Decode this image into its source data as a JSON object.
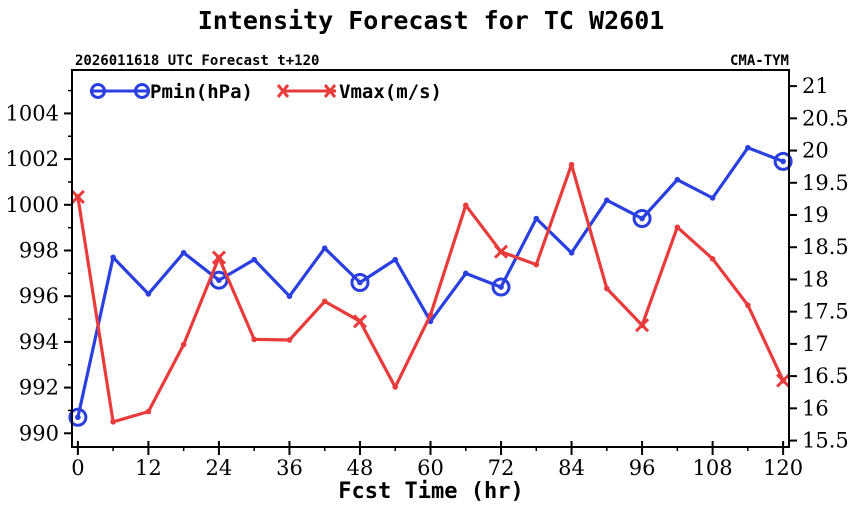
{
  "chart_data": {
    "type": "line",
    "title": "Intensity Forecast for TC W2601",
    "subtitle_left": "2026011618 UTC Forecast t+120",
    "subtitle_right": "CMA-TYM",
    "xlabel": "Fcst Time (hr)",
    "x_ticks": [
      0,
      12,
      24,
      36,
      48,
      60,
      72,
      84,
      96,
      108,
      120
    ],
    "xlim": [
      -1,
      121
    ],
    "left_axis": {
      "ylim": [
        989.4,
        1005.9
      ],
      "ticks": [
        990,
        992,
        994,
        996,
        998,
        1000,
        1002,
        1004
      ]
    },
    "right_axis": {
      "ylim": [
        15.4,
        21.25
      ],
      "ticks": [
        15.5,
        16,
        16.5,
        17,
        17.5,
        18,
        18.5,
        19,
        19.5,
        20,
        20.5,
        21
      ]
    },
    "x": [
      0,
      6,
      12,
      18,
      24,
      30,
      36,
      42,
      48,
      54,
      60,
      66,
      72,
      78,
      84,
      90,
      96,
      102,
      108,
      114,
      120
    ],
    "series": [
      {
        "name": "Pmin(hPa)",
        "axis": "left",
        "color": "#2a3fe0",
        "marker": "circle",
        "major_every": 4,
        "values": [
          990.7,
          997.7,
          996.1,
          997.9,
          996.7,
          997.6,
          996.0,
          998.1,
          996.6,
          997.6,
          994.9,
          997.0,
          996.4,
          999.4,
          997.9,
          1000.2,
          999.4,
          1001.1,
          1000.3,
          1002.5,
          1001.9
        ]
      },
      {
        "name": "Vmax(m/s)",
        "axis": "right",
        "color": "#e83c3c",
        "marker": "x",
        "major_every": 4,
        "values": [
          19.28,
          15.79,
          15.95,
          16.99,
          18.34,
          17.07,
          17.06,
          17.66,
          17.35,
          16.33,
          17.45,
          19.15,
          18.43,
          18.23,
          19.78,
          17.86,
          17.29,
          18.81,
          18.32,
          17.6,
          16.43
        ]
      }
    ]
  }
}
